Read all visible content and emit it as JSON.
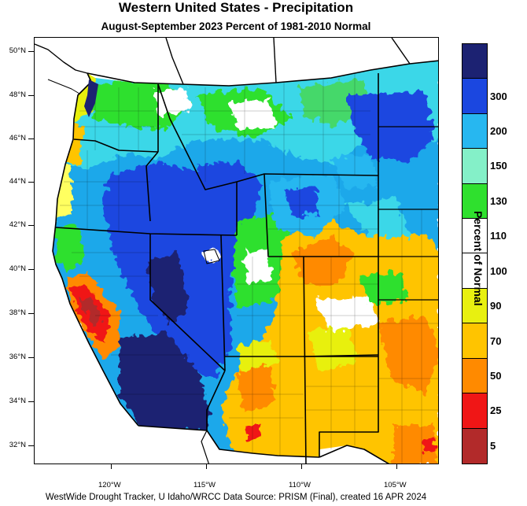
{
  "title": "Western United States - Precipitation",
  "subtitle": "August-September 2023  Percent of 1981-2010 Normal",
  "footer": "WestWide Drought Tracker, U Idaho/WRCC Data Source: PRISM (Final), created 16 APR 2024",
  "legend": {
    "title": "Percent of Normal",
    "bins": [
      {
        "label": "",
        "color": "#1c2272"
      },
      {
        "label": "300",
        "color": "#1b47e0"
      },
      {
        "label": "200",
        "color": "#27b7f0"
      },
      {
        "label": "150",
        "color": "#84f0c8"
      },
      {
        "label": "130",
        "color": "#2fe02e"
      },
      {
        "label": "110",
        "color": "#ffffff"
      },
      {
        "label": "100",
        "color": "#ffffff"
      },
      {
        "label": "90",
        "color": "#e8f010"
      },
      {
        "label": "70",
        "color": "#ffc400"
      },
      {
        "label": "50",
        "color": "#ff8a00"
      },
      {
        "label": "25",
        "color": "#f01616"
      },
      {
        "label": "5",
        "color": "#b22a2a"
      }
    ]
  },
  "axes": {
    "latitude_ticks": [
      "50°N",
      "48°N",
      "46°N",
      "44°N",
      "42°N",
      "40°N",
      "38°N",
      "36°N",
      "34°N",
      "32°N"
    ],
    "longitude_ticks": [
      "120°W",
      "115°W",
      "110°W",
      "105°W"
    ]
  }
}
